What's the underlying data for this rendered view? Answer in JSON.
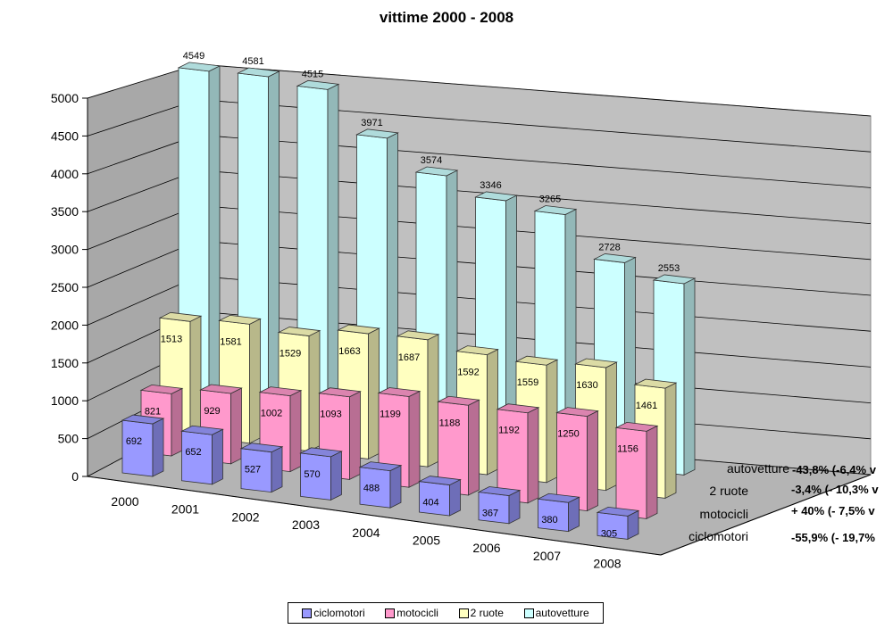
{
  "chart_data": {
    "type": "bar",
    "subtype": "3d-clustered-depth",
    "title": "vittime 2000 - 2008",
    "categories": [
      "2000",
      "2001",
      "2002",
      "2003",
      "2004",
      "2005",
      "2006",
      "2007",
      "2008"
    ],
    "series": [
      {
        "name": "ciclomotori",
        "color": "#9999ff",
        "values": [
          692,
          652,
          527,
          570,
          488,
          404,
          367,
          380,
          305
        ],
        "value_labels": [
          "692",
          "652",
          "527",
          "570",
          "488",
          "404",
          "367",
          "380",
          "305"
        ]
      },
      {
        "name": "motocicli",
        "color": "#ff99cc",
        "values": [
          821,
          929,
          1002,
          1093,
          1199,
          1188,
          1192,
          1250,
          1156
        ],
        "value_labels": [
          "821",
          "929",
          "1002",
          "1093",
          "1199",
          "1188",
          "1192",
          "1250",
          "1156"
        ]
      },
      {
        "name": "2 ruote",
        "color": "#ffffc0",
        "values": [
          1513,
          1581,
          1529,
          1663,
          1687,
          1592,
          1559,
          1630,
          1461
        ],
        "value_labels": [
          "1513",
          "1581",
          "1529",
          "1663",
          "1687",
          "1592",
          "1559",
          "1630",
          "1461"
        ]
      },
      {
        "name": "autovetture",
        "color": "#ccffff",
        "values": [
          4549,
          4581,
          4515,
          3971,
          3574,
          3346,
          3265,
          2728,
          2553
        ],
        "value_labels": [
          "4549",
          "4581",
          "4515",
          "3971",
          "3574",
          "3346",
          "3265",
          "2728",
          "2553"
        ]
      }
    ],
    "ylim": [
      0,
      5000
    ],
    "y_ticks": [
      "0",
      "500",
      "1000",
      "1500",
      "2000",
      "2500",
      "3000",
      "3500",
      "4000",
      "4500",
      "5000"
    ],
    "depth_labels": [
      "ciclomotori",
      "motocicli",
      "2 ruote",
      "autovetture"
    ],
    "annotations": [
      {
        "series": "autovetture",
        "text": "-43,8% (-6,4% v"
      },
      {
        "series": "2 ruote",
        "text": "-3,4% (- 10,3% v"
      },
      {
        "series": "motocicli",
        "text": "+ 40% (- 7,5% v"
      },
      {
        "series": "ciclomotori",
        "text": "-55,9% (- 19,7%"
      }
    ],
    "grid": true,
    "legend_position": "bottom"
  }
}
